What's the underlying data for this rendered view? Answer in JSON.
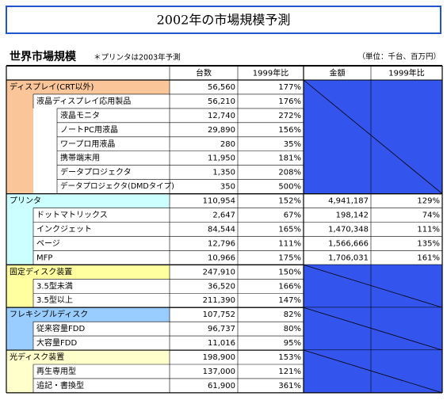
{
  "title": "2002年の市場規模予測",
  "subtitle": "世界市場規模",
  "note": "＊プリンタは2003年予測",
  "unit": "（単位：千台、百万円）",
  "table": {
    "columns": [
      "台数",
      "1999年比",
      "金額",
      "1999年比"
    ],
    "groups": [
      {
        "color": "#fac598",
        "rows": [
          [
            "ディスプレイ(CRT以外)",
            "56,560",
            "177%"
          ],
          [
            "液晶ディスプレイ応用製品",
            "56,210",
            "176%"
          ],
          [
            "液晶モニタ",
            "12,740",
            "272%"
          ],
          [
            "ノートPC用液晶",
            "29,890",
            "156%"
          ],
          [
            "ワープロ用液晶",
            "280",
            "35%"
          ],
          [
            "携帯端末用",
            "11,950",
            "181%"
          ],
          [
            "データプロジェクタ",
            "1,350",
            "208%"
          ],
          [
            "データプロジェクタ(DMDタイプ)",
            "350",
            "500%"
          ]
        ]
      },
      {
        "color": "#ccffff",
        "rows": [
          [
            "プリンタ",
            "110,954",
            "152%",
            "4,941,187",
            "129%"
          ],
          [
            "ドットマトリックス",
            "2,647",
            "67%",
            "198,142",
            "74%"
          ],
          [
            "インクジェット",
            "84,544",
            "165%",
            "1,470,348",
            "111%"
          ],
          [
            "ページ",
            "12,796",
            "111%",
            "1,566,666",
            "135%"
          ],
          [
            "MFP",
            "10,966",
            "175%",
            "1,706,031",
            "161%"
          ]
        ]
      },
      {
        "color": "#ffffa0",
        "rows": [
          [
            "固定ディスク装置",
            "247,910",
            "150%"
          ],
          [
            "3.5型未満",
            "36,520",
            "166%"
          ],
          [
            "3.5型以上",
            "211,390",
            "147%"
          ]
        ]
      },
      {
        "color": "#99ccff",
        "rows": [
          [
            "フレキシブルディスク",
            "107,752",
            "82%"
          ],
          [
            "従来容量FDD",
            "96,737",
            "80%"
          ],
          [
            "大容量FDD",
            "11,016",
            "95%"
          ]
        ]
      },
      {
        "color": "#ffffcc",
        "rows": [
          [
            "光ディスク装置",
            "198,900",
            "153%"
          ],
          [
            "再生専用型",
            "137,000",
            "121%"
          ],
          [
            "追記・書換型",
            "61,900",
            "361%"
          ]
        ]
      }
    ]
  }
}
